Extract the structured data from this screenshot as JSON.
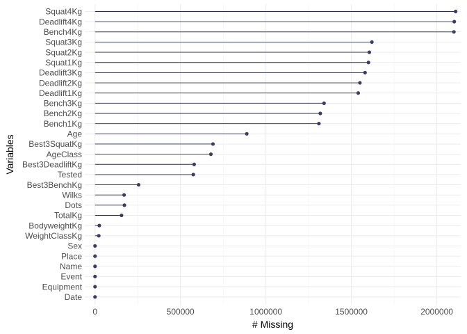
{
  "chart_data": {
    "type": "lollipop",
    "xlabel": "# Missing",
    "ylabel": "Variables",
    "xlim": [
      -60000,
      2140000
    ],
    "x_ticks": [
      0,
      500000,
      1000000,
      1500000,
      2000000
    ],
    "x_tick_labels": [
      "0",
      "500000",
      "1000000",
      "1500000",
      "2000000"
    ],
    "grid": true,
    "colors": {
      "line": "#2b2b50",
      "point": "#3c3c66",
      "grid": "#ebebeb"
    },
    "categories": [
      "Squat4Kg",
      "Deadlift4Kg",
      "Bench4Kg",
      "Squat3Kg",
      "Squat2Kg",
      "Squat1Kg",
      "Deadlift3Kg",
      "Deadlift2Kg",
      "Deadlift1Kg",
      "Bench3Kg",
      "Bench2Kg",
      "Bench1Kg",
      "Age",
      "Best3SquatKg",
      "AgeClass",
      "Best3DeadliftKg",
      "Tested",
      "Best3BenchKg",
      "Wilks",
      "Dots",
      "TotalKg",
      "BodyweightKg",
      "WeightClassKg",
      "Sex",
      "Place",
      "Name",
      "Event",
      "Equipment",
      "Date"
    ],
    "values": [
      2110000,
      2102000,
      2100000,
      1620000,
      1605000,
      1600000,
      1580000,
      1550000,
      1540000,
      1340000,
      1318000,
      1310000,
      888000,
      690000,
      678000,
      580000,
      575000,
      255000,
      170000,
      172000,
      155000,
      25000,
      22000,
      0,
      0,
      0,
      0,
      0,
      0
    ]
  }
}
